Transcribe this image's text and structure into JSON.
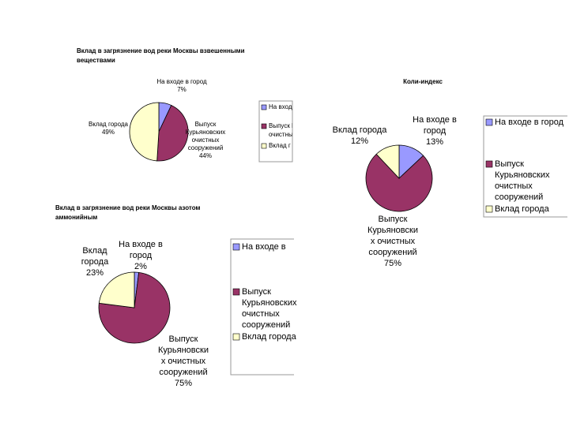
{
  "chart_data": [
    {
      "type": "pie",
      "title": [
        "Вклад в загрязнение вод реки Москвы взвешенными",
        "веществами"
      ],
      "values": [
        7,
        44,
        49
      ],
      "value_labels": [
        "7%",
        "44%",
        "49%"
      ],
      "label_lines": [
        [
          "На входе в город"
        ],
        [
          "Выпуск",
          "Курьяновских",
          "очистных",
          "сооружений"
        ],
        [
          "Вклад города"
        ]
      ],
      "legend_lines": [
        [
          "На входе"
        ],
        [
          "Выпуск К",
          "очистных"
        ],
        [
          "Вклад г"
        ]
      ],
      "colors": [
        "#9999ff",
        "#993366",
        "#ffffcc"
      ]
    },
    {
      "type": "pie",
      "title": [
        "Коли-индекс"
      ],
      "values": [
        13,
        75,
        12
      ],
      "value_labels": [
        "13%",
        "75%",
        "12%"
      ],
      "label_lines": [
        [
          "На входе в",
          "город"
        ],
        [
          "Выпуск",
          "Курьяновски",
          "х очистных",
          "сооружений"
        ],
        [
          "Вклад города"
        ]
      ],
      "legend_lines": [
        [
          "На входе в город"
        ],
        [
          "Выпуск",
          "Курьяновских",
          "очистных",
          "сооружений"
        ],
        [
          "Вклад города"
        ]
      ],
      "colors": [
        "#9999ff",
        "#993366",
        "#ffffcc"
      ]
    },
    {
      "type": "pie",
      "title": [
        "Вклад в загрязнение вод реки Москвы азотом",
        "аммонийным"
      ],
      "values": [
        2,
        75,
        23
      ],
      "value_labels": [
        "2%",
        "75%",
        "23%"
      ],
      "label_lines": [
        [
          "На входе в",
          "город"
        ],
        [
          "Выпуск",
          "Курьяновски",
          "х очистных",
          "сооружений"
        ],
        [
          "Вклад",
          "города"
        ]
      ],
      "legend_lines": [
        [
          "На входе в"
        ],
        [
          "Выпуск",
          "Курьяновских",
          "очистных",
          "сооружений"
        ],
        [
          "Вклад города"
        ]
      ],
      "colors": [
        "#9999ff",
        "#993366",
        "#ffffcc"
      ]
    }
  ]
}
